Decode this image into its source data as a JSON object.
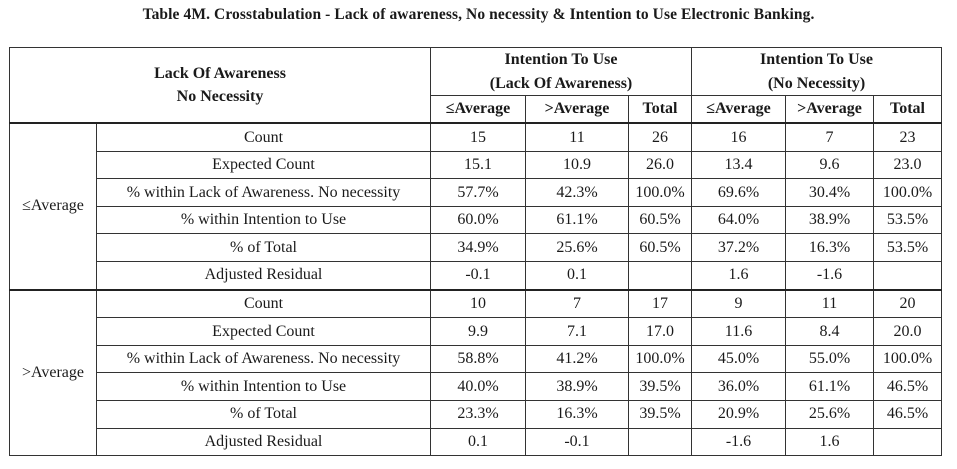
{
  "title": "Table 4M. Crosstabulation - Lack of awareness, No necessity & Intention to Use Electronic Banking.",
  "corner": {
    "line1": "Lack Of Awareness",
    "line2": "No Necessity"
  },
  "column_groups": [
    {
      "line1": "Intention To Use",
      "line2": "(Lack Of Awareness)"
    },
    {
      "line1": "Intention To Use",
      "line2": "(No Necessity)"
    }
  ],
  "subcolumns": [
    "≤Average",
    ">Average",
    "Total",
    "≤Average",
    ">Average",
    "Total"
  ],
  "row_groups": [
    {
      "label": "≤Average",
      "rows": [
        {
          "label": "Count",
          "values": [
            "15",
            "11",
            "26",
            "16",
            "7",
            "23"
          ]
        },
        {
          "label": "Expected Count",
          "values": [
            "15.1",
            "10.9",
            "26.0",
            "13.4",
            "9.6",
            "23.0"
          ]
        },
        {
          "label": "% within Lack of Awareness. No necessity",
          "values": [
            "57.7%",
            "42.3%",
            "100.0%",
            "69.6%",
            "30.4%",
            "100.0%"
          ]
        },
        {
          "label": "% within Intention to Use",
          "values": [
            "60.0%",
            "61.1%",
            "60.5%",
            "64.0%",
            "38.9%",
            "53.5%"
          ]
        },
        {
          "label": "% of Total",
          "values": [
            "34.9%",
            "25.6%",
            "60.5%",
            "37.2%",
            "16.3%",
            "53.5%"
          ]
        },
        {
          "label": "Adjusted Residual",
          "values": [
            "-0.1",
            "0.1",
            "",
            "1.6",
            "-1.6",
            ""
          ]
        }
      ]
    },
    {
      "label": ">Average",
      "rows": [
        {
          "label": "Count",
          "values": [
            "10",
            "7",
            "17",
            "9",
            "11",
            "20"
          ]
        },
        {
          "label": "Expected Count",
          "values": [
            "9.9",
            "7.1",
            "17.0",
            "11.6",
            "8.4",
            "20.0"
          ]
        },
        {
          "label": "% within Lack of Awareness. No necessity",
          "values": [
            "58.8%",
            "41.2%",
            "100.0%",
            "45.0%",
            "55.0%",
            "100.0%"
          ]
        },
        {
          "label": "% within Intention to Use",
          "values": [
            "40.0%",
            "38.9%",
            "39.5%",
            "36.0%",
            "61.1%",
            "46.5%"
          ]
        },
        {
          "label": "% of Total",
          "values": [
            "23.3%",
            "16.3%",
            "39.5%",
            "20.9%",
            "25.6%",
            "46.5%"
          ]
        },
        {
          "label": "Adjusted Residual",
          "values": [
            "0.1",
            "-0.1",
            "",
            "-1.6",
            "1.6",
            ""
          ]
        }
      ]
    }
  ]
}
